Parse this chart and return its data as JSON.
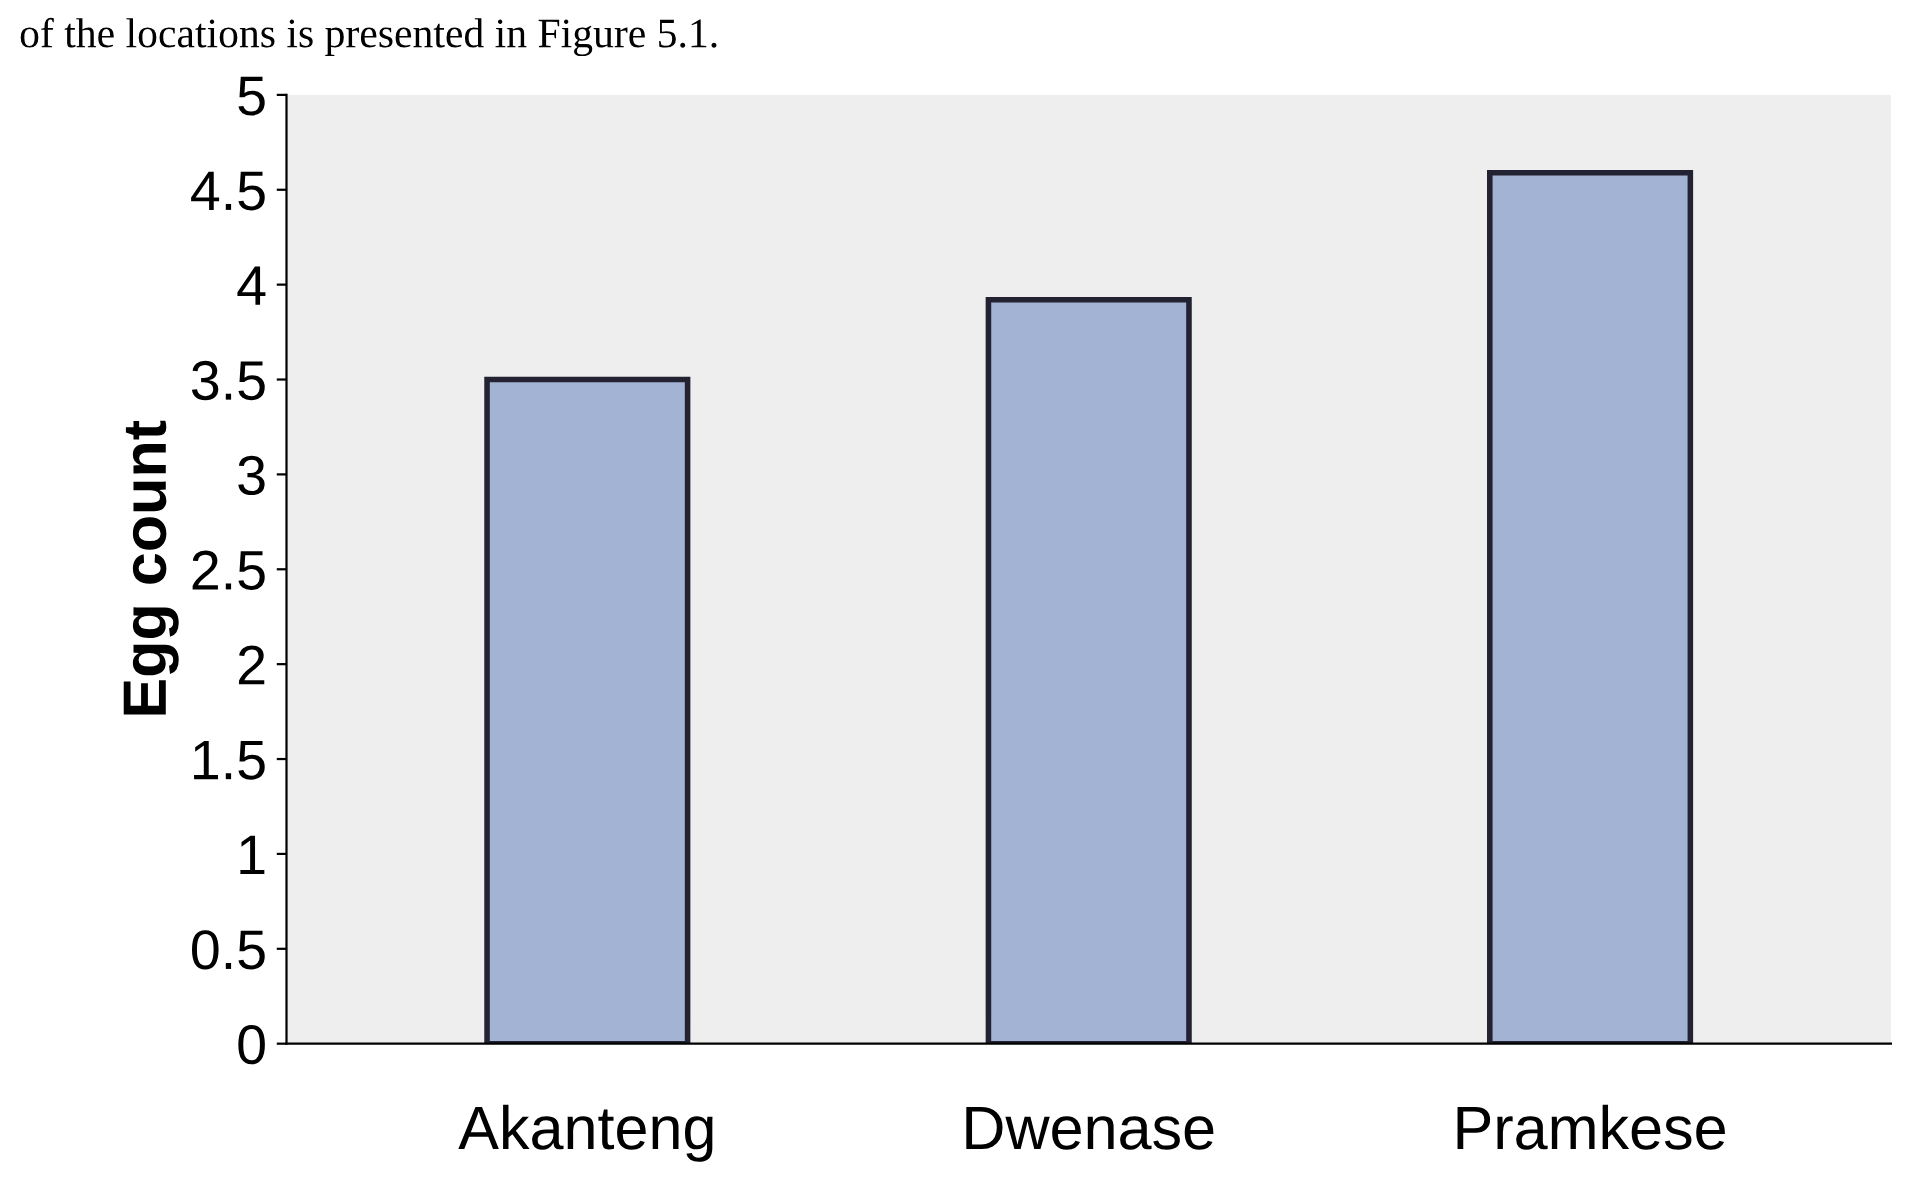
{
  "chart_data": {
    "type": "bar",
    "ylabel": "Egg count",
    "categories": [
      "Akanteng",
      "Dwenase",
      "Pramkese"
    ],
    "values": [
      3.5,
      3.92,
      4.59
    ],
    "color": "#a3b3d3",
    "ylim": [
      0,
      5
    ],
    "yticks": [
      0,
      0.5,
      1,
      1.5,
      2,
      2.5,
      3,
      3.5,
      4,
      4.5,
      5
    ],
    "grid": false,
    "annotations": [
      "of the locations is presented in Figure 5.1."
    ]
  }
}
